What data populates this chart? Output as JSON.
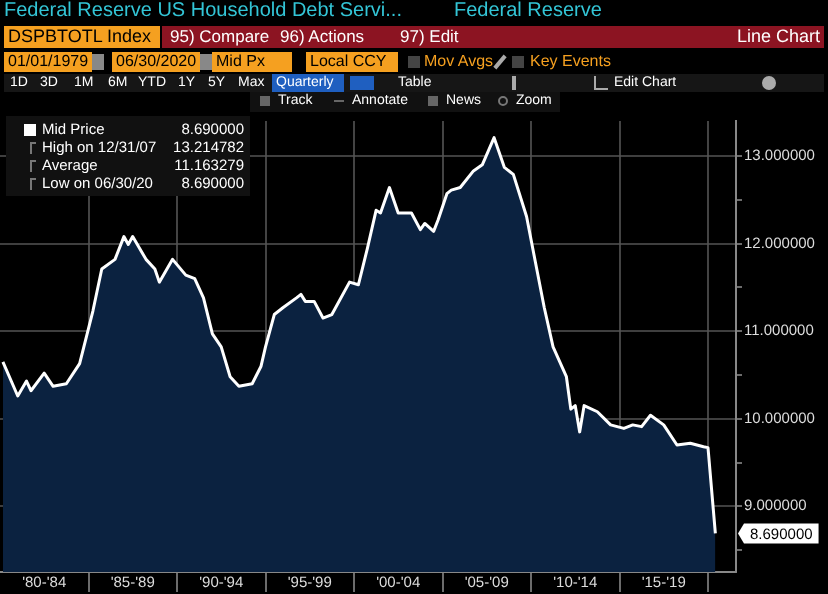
{
  "chart_data": {
    "type": "area",
    "title": "Federal Reserve US Household Debt Servi...",
    "subtitle": "Federal Reserve",
    "x": [
      "1980-03",
      "1981-01",
      "1981-07",
      "1981-10",
      "1982-07",
      "1983-01",
      "1983-10",
      "1984-07",
      "1985-04",
      "1985-10",
      "1986-07",
      "1987-01",
      "1987-04",
      "1987-07",
      "1988-04",
      "1988-10",
      "1989-01",
      "1989-10",
      "1990-07",
      "1991-01",
      "1991-07",
      "1992-01",
      "1992-07",
      "1993-01",
      "1993-07",
      "1994-04",
      "1994-10",
      "1995-01",
      "1995-07",
      "1996-01",
      "1996-10",
      "1997-01",
      "1997-04",
      "1997-10",
      "1998-04",
      "1998-10",
      "1999-10",
      "2000-04",
      "2000-10",
      "2001-04",
      "2001-07",
      "2002-01",
      "2002-07",
      "2003-04",
      "2003-10",
      "2004-01",
      "2004-07",
      "2004-10",
      "2005-04",
      "2005-07",
      "2006-01",
      "2006-10",
      "2007-04",
      "2007-12",
      "2008-07",
      "2009-01",
      "2009-10",
      "2010-04",
      "2010-10",
      "2011-04",
      "2012-01",
      "2012-04",
      "2012-07",
      "2012-10",
      "2013-01",
      "2013-10",
      "2014-07",
      "2015-04",
      "2015-10",
      "2016-04",
      "2016-10",
      "2017-07",
      "2018-04",
      "2019-01",
      "2019-10",
      "2020-01",
      "2020-06"
    ],
    "series": [
      {
        "name": "Mid Price",
        "color": "#ffffff",
        "values": [
          10.65,
          10.26,
          10.43,
          10.32,
          10.52,
          10.37,
          10.4,
          10.63,
          11.23,
          11.71,
          11.82,
          12.08,
          11.99,
          12.08,
          11.82,
          11.71,
          11.56,
          11.82,
          11.64,
          11.6,
          11.38,
          10.97,
          10.82,
          10.48,
          10.37,
          10.4,
          10.6,
          10.82,
          11.19,
          11.27,
          11.38,
          11.42,
          11.34,
          11.34,
          11.15,
          11.19,
          11.56,
          11.53,
          11.94,
          12.38,
          12.35,
          12.64,
          12.35,
          12.35,
          12.16,
          12.23,
          12.14,
          12.27,
          12.57,
          12.61,
          12.64,
          12.83,
          12.9,
          13.21,
          12.87,
          12.79,
          12.31,
          11.79,
          11.27,
          10.82,
          10.48,
          10.11,
          10.15,
          9.85,
          10.15,
          10.08,
          9.93,
          9.89,
          9.93,
          9.91,
          10.04,
          9.93,
          9.7,
          9.72,
          9.68,
          9.67,
          8.69
        ]
      }
    ],
    "xlim": [
      "1980-01",
      "2021-08"
    ],
    "xticks": [
      {
        "value": "1982-07",
        "label": "'80-'84"
      },
      {
        "value": "1985-01",
        "label": null
      },
      {
        "value": "1987-07",
        "label": "'85-'89"
      },
      {
        "value": "1990-01",
        "label": null
      },
      {
        "value": "1992-07",
        "label": "'90-'94"
      },
      {
        "value": "1995-01",
        "label": null
      },
      {
        "value": "1997-07",
        "label": "'95-'99"
      },
      {
        "value": "2000-01",
        "label": null
      },
      {
        "value": "2002-07",
        "label": "'00-'04"
      },
      {
        "value": "2005-01",
        "label": null
      },
      {
        "value": "2007-07",
        "label": "'05-'09"
      },
      {
        "value": "2010-01",
        "label": null
      },
      {
        "value": "2012-07",
        "label": "'10-'14"
      },
      {
        "value": "2015-01",
        "label": null
      },
      {
        "value": "2017-07",
        "label": "'15-'19"
      },
      {
        "value": "2020-01",
        "label": null
      }
    ],
    "ylim": [
      8.25,
      13.4
    ],
    "yticks": [
      {
        "value": 8.5,
        "label": null
      },
      {
        "value": 9,
        "label": "9.000000"
      },
      {
        "value": 9.5,
        "label": null
      },
      {
        "value": 10,
        "label": "10.000000"
      },
      {
        "value": 10.5,
        "label": null
      },
      {
        "value": 11,
        "label": "11.000000"
      },
      {
        "value": 11.5,
        "label": null
      },
      {
        "value": 12,
        "label": "12.000000"
      },
      {
        "value": 12.5,
        "label": null
      },
      {
        "value": 13,
        "label": "13.000000"
      }
    ],
    "grid": true,
    "legend": "top left",
    "annotations": [
      "DSPBTOTL Index",
      "95) Compare",
      "96) Actions",
      "97) Edit",
      "Line Chart",
      "01/01/1979",
      "06/30/2020",
      "Mid Px",
      "Local CCY",
      "Mov Avgs",
      "Key Events",
      "1D",
      "3D",
      "1M",
      "6M",
      "YTD",
      "1Y",
      "5Y",
      "Max",
      "Quarterly",
      "Table",
      "Edit Chart",
      "Track",
      "Annotate",
      "News",
      "Zoom",
      "8.690000",
      "High on 12/31/07",
      "13.214782",
      "Average",
      "11.163279",
      "Low on 06/30/20",
      "8.690000",
      {
        "text": "8.690000",
        "x": "2020-06",
        "y": 8.69
      }
    ]
  }
}
